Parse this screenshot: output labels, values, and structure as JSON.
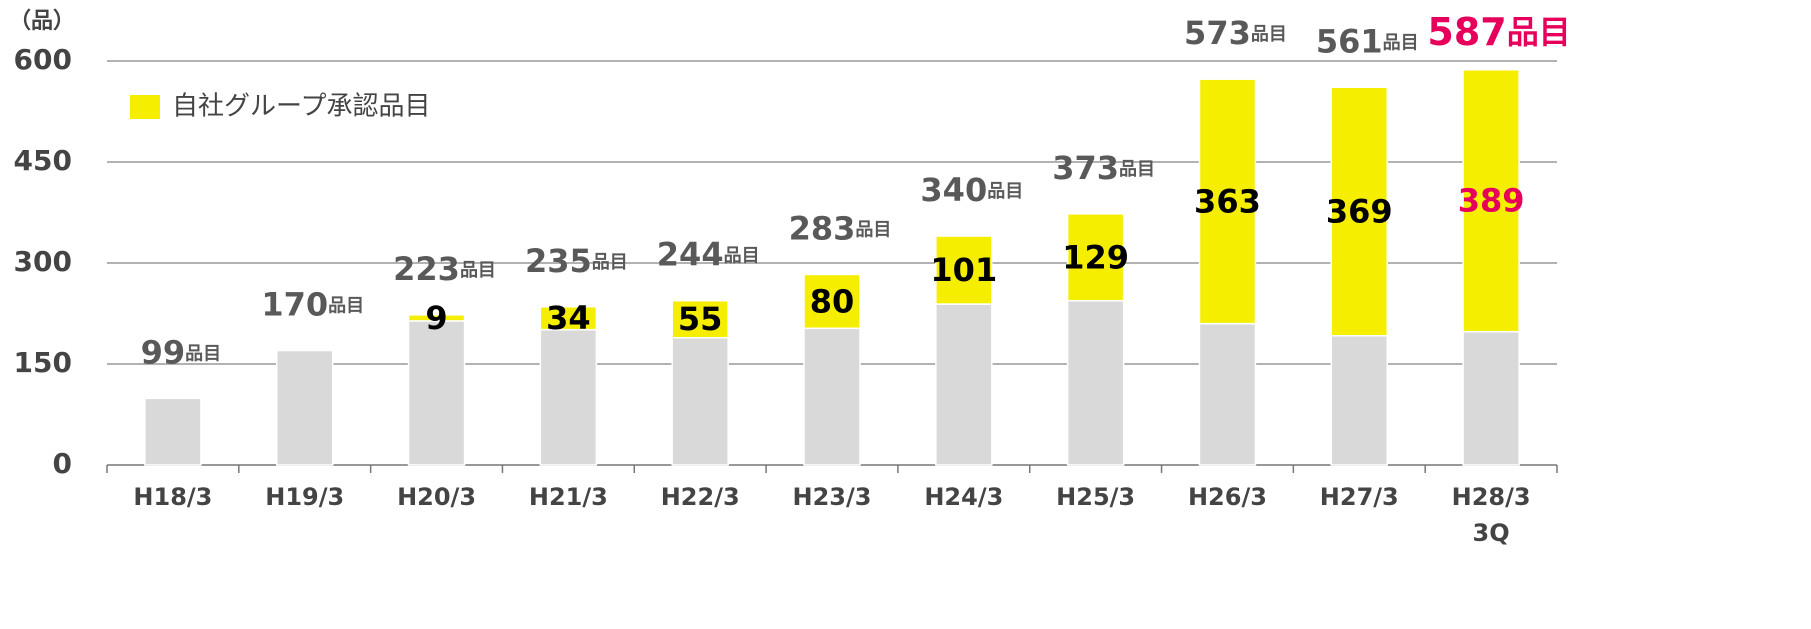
{
  "chart_data": {
    "type": "stacked_bar",
    "y_unit": "（品）",
    "categories": [
      "H18/3",
      "H19/3",
      "H20/3",
      "H21/3",
      "H22/3",
      "H23/3",
      "H24/3",
      "H25/3",
      "H26/3",
      "H27/3",
      "H28/3\n3Q"
    ],
    "series": [
      {
        "color": "#d9d9d9",
        "values": [
          99,
          170,
          214,
          201,
          189,
          203,
          239,
          244,
          210,
          192,
          198
        ]
      },
      {
        "name": "自社グループ承認品目",
        "color": "#f5ee00",
        "values": [
          null,
          null,
          9,
          34,
          55,
          80,
          101,
          129,
          363,
          369,
          389
        ],
        "show_labels": true
      }
    ],
    "totals": [
      99,
      170,
      223,
      235,
      244,
      283,
      340,
      373,
      573,
      561,
      587
    ],
    "total_unit": "品目",
    "highlight_color": "#e6005c",
    "highlight_index": 10,
    "ylim": [
      0,
      600
    ],
    "yticks": [
      0,
      150,
      300,
      450,
      600
    ],
    "grid": true,
    "legend": "top-left"
  }
}
